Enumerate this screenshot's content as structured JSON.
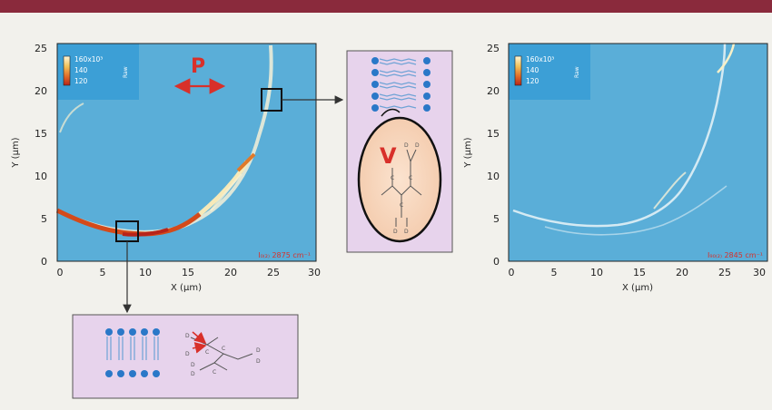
{
  "figure": {
    "left_panel": {
      "y_axis_label": "Y (μm)",
      "x_axis_label": "X (μm)",
      "y_ticks": [
        "0",
        "5",
        "10",
        "15",
        "20",
        "25"
      ],
      "x_ticks": [
        "0",
        "5",
        "10",
        "15",
        "20",
        "25",
        "30"
      ],
      "polarization_label": "P",
      "colorbar_labels": [
        "160x10³",
        "140",
        "120"
      ],
      "colorbar_unit": "Raw",
      "band_label": "I₀₍₂₎ 2875 cm⁻¹"
    },
    "right_panel": {
      "y_axis_label": "Y (μm)",
      "x_axis_label": "X (μm)",
      "y_ticks": [
        "0",
        "5",
        "10",
        "15",
        "20",
        "25"
      ],
      "x_ticks": [
        "0",
        "5",
        "10",
        "15",
        "20",
        "25",
        "30"
      ],
      "colorbar_labels": [
        "160x10³",
        "140",
        "120"
      ],
      "colorbar_unit": "Raw",
      "band_label": "I₉₀₍₂₎ 2845 cm⁻¹"
    },
    "inset_top": {
      "vibration_label": "V"
    },
    "inset_bottom": {}
  },
  "colors": {
    "top_bar": "#8a2a3c",
    "map_background": "#5aaed8",
    "inset_fill": "#e7d3ec",
    "lipid_blue": "#2a78c8",
    "ring_hot": "#d44a1a",
    "arrow_red": "#d8302a"
  }
}
